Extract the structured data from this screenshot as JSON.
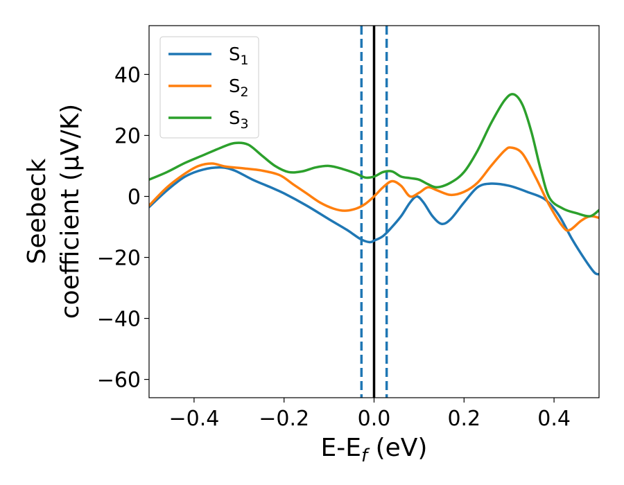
{
  "chart_data": {
    "type": "line",
    "xlabel": "E-E",
    "xlabel_sub": "f",
    "xlabel_unit": " (eV)",
    "ylabel_line1": "Seebeck",
    "ylabel_line2": "coefficient  (μV/K)",
    "xlim": [
      -0.5,
      0.5
    ],
    "ylim": [
      -66,
      56
    ],
    "x_ticks": [
      {
        "value": -0.4,
        "label": "−0.4"
      },
      {
        "value": -0.2,
        "label": "−0.2"
      },
      {
        "value": 0.0,
        "label": "0.0"
      },
      {
        "value": 0.2,
        "label": "0.2"
      },
      {
        "value": 0.4,
        "label": "0.4"
      }
    ],
    "y_ticks": [
      {
        "value": 40,
        "label": "40"
      },
      {
        "value": 20,
        "label": "20"
      },
      {
        "value": 0,
        "label": "0"
      },
      {
        "value": -20,
        "label": "−20"
      },
      {
        "value": -40,
        "label": "−40"
      },
      {
        "value": -60,
        "label": "−60"
      }
    ],
    "grid": false,
    "legend_position": "top-left",
    "series": [
      {
        "name": "S",
        "subscript": "1",
        "color": "#1f77b4",
        "points": [
          [
            -0.5,
            -3.5
          ],
          [
            -0.46,
            2
          ],
          [
            -0.42,
            6.5
          ],
          [
            -0.38,
            8.8
          ],
          [
            -0.34,
            9.5
          ],
          [
            -0.31,
            8.5
          ],
          [
            -0.27,
            5.5
          ],
          [
            -0.23,
            3
          ],
          [
            -0.2,
            1
          ],
          [
            -0.15,
            -3
          ],
          [
            -0.1,
            -7.5
          ],
          [
            -0.06,
            -11
          ],
          [
            -0.03,
            -14
          ],
          [
            -0.01,
            -15
          ],
          [
            0.0,
            -14.5
          ],
          [
            0.02,
            -13
          ],
          [
            0.04,
            -10
          ],
          [
            0.06,
            -6.5
          ],
          [
            0.08,
            -2
          ],
          [
            0.095,
            0
          ],
          [
            0.11,
            -2
          ],
          [
            0.13,
            -6.5
          ],
          [
            0.15,
            -9
          ],
          [
            0.17,
            -7.5
          ],
          [
            0.2,
            -2
          ],
          [
            0.23,
            3
          ],
          [
            0.26,
            4.2
          ],
          [
            0.3,
            3.5
          ],
          [
            0.34,
            1.5
          ],
          [
            0.38,
            -1
          ],
          [
            0.41,
            -6
          ],
          [
            0.44,
            -14
          ],
          [
            0.47,
            -21
          ],
          [
            0.49,
            -25
          ],
          [
            0.5,
            -25.5
          ]
        ]
      },
      {
        "name": "S",
        "subscript": "2",
        "color": "#ff7f0e",
        "points": [
          [
            -0.5,
            -3
          ],
          [
            -0.46,
            3
          ],
          [
            -0.42,
            7.5
          ],
          [
            -0.39,
            10
          ],
          [
            -0.36,
            10.8
          ],
          [
            -0.33,
            9.8
          ],
          [
            -0.29,
            9.2
          ],
          [
            -0.25,
            8.5
          ],
          [
            -0.21,
            7
          ],
          [
            -0.18,
            4
          ],
          [
            -0.15,
            1
          ],
          [
            -0.12,
            -2
          ],
          [
            -0.09,
            -4
          ],
          [
            -0.065,
            -4.7
          ],
          [
            -0.04,
            -4
          ],
          [
            -0.02,
            -2.5
          ],
          [
            0.0,
            0
          ],
          [
            0.02,
            3
          ],
          [
            0.04,
            5
          ],
          [
            0.06,
            3.5
          ],
          [
            0.08,
            0
          ],
          [
            0.1,
            1.2
          ],
          [
            0.12,
            3
          ],
          [
            0.14,
            2
          ],
          [
            0.17,
            0.5
          ],
          [
            0.2,
            1.5
          ],
          [
            0.23,
            4.5
          ],
          [
            0.26,
            10
          ],
          [
            0.29,
            15
          ],
          [
            0.305,
            16
          ],
          [
            0.33,
            14
          ],
          [
            0.36,
            6
          ],
          [
            0.39,
            -3
          ],
          [
            0.42,
            -10
          ],
          [
            0.435,
            -11
          ],
          [
            0.46,
            -8
          ],
          [
            0.48,
            -6.5
          ],
          [
            0.5,
            -7
          ]
        ]
      },
      {
        "name": "S",
        "subscript": "3",
        "color": "#2ca02c",
        "points": [
          [
            -0.5,
            5.5
          ],
          [
            -0.46,
            8
          ],
          [
            -0.42,
            11
          ],
          [
            -0.38,
            13.5
          ],
          [
            -0.34,
            16
          ],
          [
            -0.31,
            17.5
          ],
          [
            -0.28,
            17
          ],
          [
            -0.25,
            13.5
          ],
          [
            -0.22,
            10
          ],
          [
            -0.19,
            8
          ],
          [
            -0.16,
            8.2
          ],
          [
            -0.13,
            9.5
          ],
          [
            -0.1,
            10
          ],
          [
            -0.07,
            9
          ],
          [
            -0.04,
            7.5
          ],
          [
            -0.02,
            6.2
          ],
          [
            0.0,
            6.5
          ],
          [
            0.02,
            8
          ],
          [
            0.04,
            8.2
          ],
          [
            0.06,
            6.5
          ],
          [
            0.08,
            6
          ],
          [
            0.1,
            5.5
          ],
          [
            0.12,
            4
          ],
          [
            0.14,
            3
          ],
          [
            0.17,
            4.5
          ],
          [
            0.2,
            8
          ],
          [
            0.23,
            15
          ],
          [
            0.26,
            24
          ],
          [
            0.29,
            31.5
          ],
          [
            0.31,
            33.5
          ],
          [
            0.33,
            30
          ],
          [
            0.35,
            21
          ],
          [
            0.37,
            9
          ],
          [
            0.39,
            -0.5
          ],
          [
            0.42,
            -4
          ],
          [
            0.45,
            -5.5
          ],
          [
            0.48,
            -6.5
          ],
          [
            0.5,
            -4.5
          ]
        ]
      }
    ],
    "vertical_lines": [
      {
        "x": 0.0,
        "color": "#000000",
        "style": "solid"
      },
      {
        "x": -0.028,
        "color": "#1f77b4",
        "style": "dashed"
      },
      {
        "x": 0.028,
        "color": "#1f77b4",
        "style": "dashed"
      }
    ]
  }
}
